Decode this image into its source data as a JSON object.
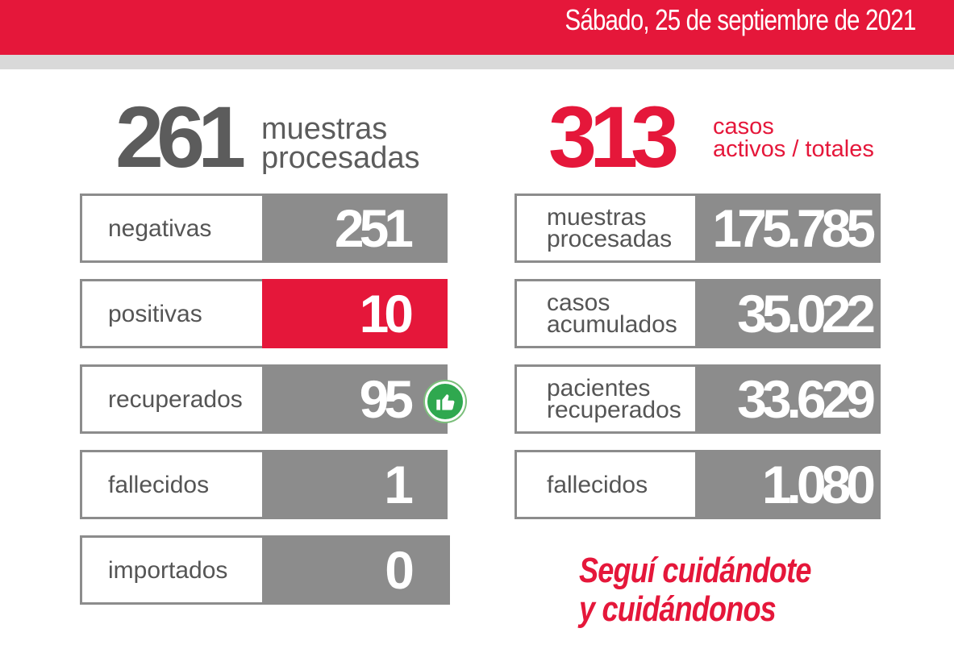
{
  "header": {
    "date": "Sábado, 25 de septiembre de 2021",
    "accent_color": "#e5173a"
  },
  "daily": {
    "total_value": "261",
    "total_caption_line1": "muestras",
    "total_caption_line2": "procesadas",
    "rows": [
      {
        "label": "negativas",
        "value": "251"
      },
      {
        "label": "positivas",
        "value": "10"
      },
      {
        "label": "recuperados",
        "value": "95"
      },
      {
        "label": "fallecidos",
        "value": "1"
      },
      {
        "label": "importados",
        "value": "0"
      }
    ],
    "recuperados_icon": "thumbs-up-icon"
  },
  "cumulative": {
    "total_value": "313",
    "total_caption_line1": "casos",
    "total_caption_line2": "activos / totales",
    "rows": [
      {
        "label_line1": "muestras",
        "label_line2": "procesadas",
        "value": "175.785"
      },
      {
        "label_line1": "casos",
        "label_line2": "acumulados",
        "value": "35.022"
      },
      {
        "label_line1": "pacientes",
        "label_line2": "recuperados",
        "value": "33.629"
      },
      {
        "label_line1": "fallecidos",
        "label_line2": "",
        "value": "1.080"
      }
    ]
  },
  "slogan": {
    "line1": "Seguí cuidándote",
    "line2": "y cuidándonos"
  }
}
